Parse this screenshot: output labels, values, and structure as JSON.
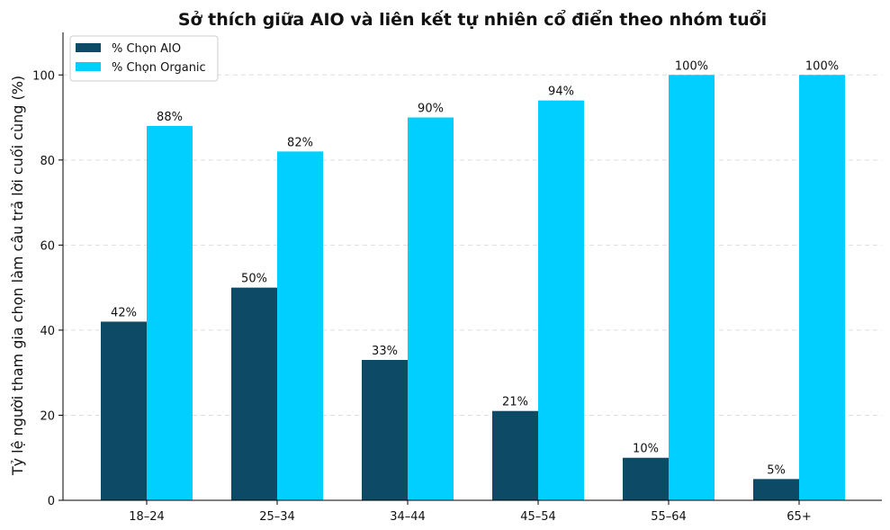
{
  "chart_data": {
    "type": "bar",
    "title": "Sở thích giữa AIO và liên kết tự nhiên cổ điển theo nhóm tuổi",
    "xlabel": "",
    "ylabel": "Tỷ lệ người tham gia chọn làm câu trả lời cuối cùng (%)",
    "categories": [
      "18–24",
      "25–34",
      "34–44",
      "45–54",
      "55–64",
      "65+"
    ],
    "ylim": [
      0,
      110
    ],
    "yticks": [
      0,
      20,
      40,
      60,
      80,
      100
    ],
    "grid": "y-dashed",
    "legend_position": "top-left",
    "series": [
      {
        "name": "% Chọn AIO",
        "color": "#0d4a66",
        "values": [
          42,
          50,
          33,
          21,
          10,
          5
        ],
        "labels": [
          "42%",
          "50%",
          "33%",
          "21%",
          "10%",
          "5%"
        ]
      },
      {
        "name": "% Chọn Organic",
        "color": "#00cfff",
        "values": [
          88,
          82,
          90,
          94,
          100,
          100
        ],
        "labels": [
          "88%",
          "82%",
          "90%",
          "94%",
          "100%",
          "100%"
        ]
      }
    ]
  }
}
